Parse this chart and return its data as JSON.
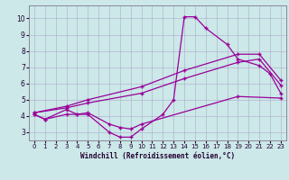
{
  "xlabel": "Windchill (Refroidissement éolien,°C)",
  "bg_color": "#cce8e8",
  "line_color": "#990099",
  "grid_color": "#aaaacc",
  "xlim": [
    -0.5,
    23.5
  ],
  "ylim": [
    2.5,
    10.8
  ],
  "xticks": [
    0,
    1,
    2,
    3,
    4,
    5,
    6,
    7,
    8,
    9,
    10,
    11,
    12,
    13,
    14,
    15,
    16,
    17,
    18,
    19,
    20,
    21,
    22,
    23
  ],
  "yticks": [
    3,
    4,
    5,
    6,
    7,
    8,
    9,
    10
  ],
  "curve1_x": [
    0,
    1,
    3,
    4,
    5,
    7,
    8,
    9,
    10,
    12,
    13,
    14,
    15,
    16,
    18,
    19,
    21,
    22,
    23
  ],
  "curve1_y": [
    4.1,
    3.8,
    4.4,
    4.1,
    4.1,
    3.0,
    2.7,
    2.7,
    3.2,
    4.1,
    5.0,
    10.1,
    10.1,
    9.4,
    8.4,
    7.5,
    7.1,
    6.6,
    5.4
  ],
  "curve2_x": [
    0,
    1,
    3,
    4,
    5,
    7,
    8,
    9,
    10,
    19,
    23
  ],
  "curve2_y": [
    4.1,
    3.8,
    4.1,
    4.1,
    4.2,
    3.5,
    3.3,
    3.2,
    3.5,
    5.2,
    5.1
  ],
  "curve3_x": [
    0,
    3,
    5,
    10,
    14,
    19,
    21,
    23
  ],
  "curve3_y": [
    4.2,
    4.5,
    4.8,
    5.4,
    6.3,
    7.3,
    7.5,
    5.9
  ],
  "curve4_x": [
    0,
    3,
    5,
    10,
    14,
    19,
    21,
    23
  ],
  "curve4_y": [
    4.2,
    4.6,
    5.0,
    5.8,
    6.8,
    7.8,
    7.8,
    6.2
  ]
}
